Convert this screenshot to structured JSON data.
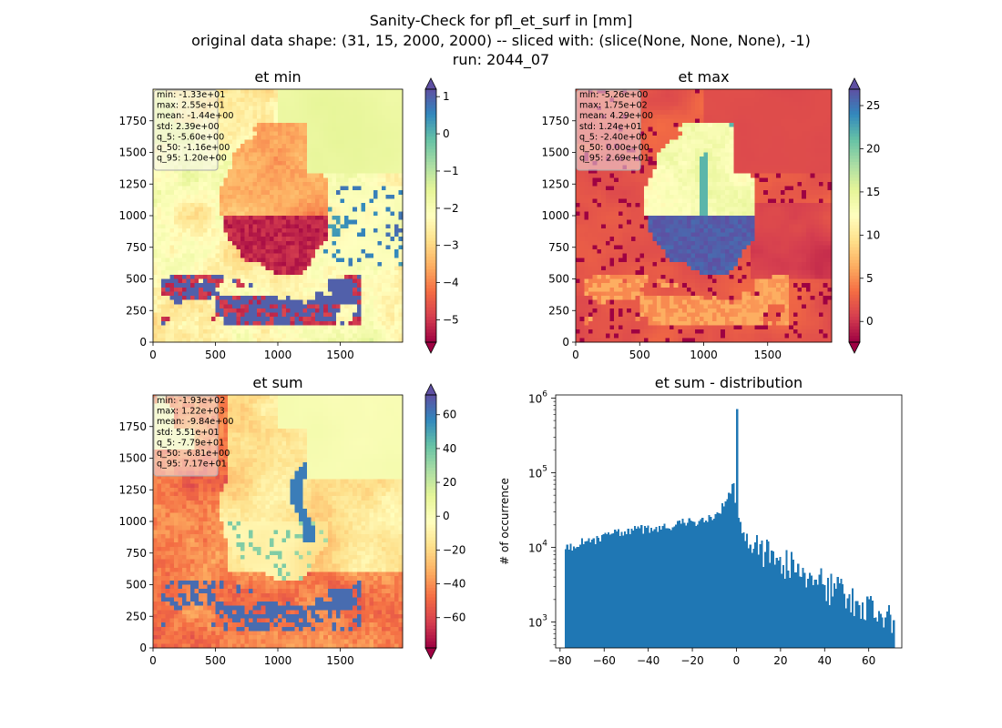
{
  "figure": {
    "suptitle_lines": [
      "Sanity-Check for pfl_et_surf in [mm]",
      "original data shape: (31, 15, 2000, 2000) -- sliced with: (slice(None, None, None), -1)",
      "run: 2044_07"
    ]
  },
  "colors": {
    "spectral": [
      "#9e0142",
      "#d53e4f",
      "#f46d43",
      "#fdae61",
      "#fee08b",
      "#ffffbf",
      "#e6f598",
      "#abdda4",
      "#66c2a5",
      "#3288bd",
      "#5e4fa2"
    ],
    "hist_bar": "#1f77b4"
  },
  "chart_data": [
    {
      "type": "heatmap",
      "title": "et min",
      "x_ticks": [
        "0",
        "500",
        "1000",
        "1500"
      ],
      "y_ticks": [
        "0",
        "250",
        "500",
        "750",
        "1000",
        "1250",
        "1500",
        "1750"
      ],
      "xlim": [
        0,
        2000
      ],
      "ylim": [
        0,
        2000
      ],
      "colorbar": {
        "vmin": -5.6,
        "vmax": 1.2,
        "extend": "both",
        "ticks": [
          "1",
          "0",
          "−1",
          "−2",
          "−3",
          "−4",
          "−5"
        ],
        "tick_values": [
          1,
          0,
          -1,
          -2,
          -3,
          -4,
          -5
        ]
      },
      "stats": [
        "min: -1.33e+01",
        "max: 2.55e+01",
        "mean: -1.44e+00",
        "std: 2.39e+00",
        "q_5: -5.60e+00",
        "q_50: -1.16e+00",
        "q_95: 1.20e+00"
      ]
    },
    {
      "type": "heatmap",
      "title": "et max",
      "x_ticks": [
        "0",
        "500",
        "1000",
        "1500"
      ],
      "y_ticks": [
        "0",
        "250",
        "500",
        "750",
        "1000",
        "1250",
        "1500",
        "1750"
      ],
      "xlim": [
        0,
        2000
      ],
      "ylim": [
        0,
        2000
      ],
      "colorbar": {
        "vmin": -2.4,
        "vmax": 26.9,
        "extend": "both",
        "ticks": [
          "25",
          "20",
          "15",
          "10",
          "5",
          "0"
        ],
        "tick_values": [
          25,
          20,
          15,
          10,
          5,
          0
        ]
      },
      "stats": [
        "min: -5.26e+00",
        "max: 1.75e+02",
        "mean: 4.29e+00",
        "std: 1.24e+01",
        "q_5: -2.40e+00",
        "q_50: 0.00e+00",
        "q_95: 2.69e+01"
      ]
    },
    {
      "type": "heatmap",
      "title": "et sum",
      "x_ticks": [
        "0",
        "500",
        "1000",
        "1500"
      ],
      "y_ticks": [
        "0",
        "250",
        "500",
        "750",
        "1000",
        "1250",
        "1500",
        "1750"
      ],
      "xlim": [
        0,
        2000
      ],
      "ylim": [
        0,
        2000
      ],
      "colorbar": {
        "vmin": -77.9,
        "vmax": 71.7,
        "extend": "both",
        "ticks": [
          "60",
          "40",
          "20",
          "0",
          "−20",
          "−40",
          "−60"
        ],
        "tick_values": [
          60,
          40,
          20,
          0,
          -20,
          -40,
          -60
        ]
      },
      "stats": [
        "min: -1.93e+02",
        "max: 1.22e+03",
        "mean: -9.84e+00",
        "std: 5.51e+01",
        "q_5: -7.79e+01",
        "q_50: -6.81e+00",
        "q_95: 7.17e+01"
      ]
    },
    {
      "type": "bar",
      "title": "et sum - distribution",
      "ylabel": "# of occurrence",
      "y_scale": "log",
      "xlim": [
        -82,
        75
      ],
      "ylim": [
        450,
        1100000
      ],
      "x_ticks": [
        "−80",
        "−60",
        "−40",
        "−20",
        "0",
        "20",
        "40",
        "60"
      ],
      "x_tick_values": [
        -80,
        -60,
        -40,
        -20,
        0,
        20,
        40,
        60
      ],
      "y_tick_labels": [
        {
          "base": "10",
          "exp": "3",
          "value": 1000
        },
        {
          "base": "10",
          "exp": "4",
          "value": 10000
        },
        {
          "base": "10",
          "exp": "5",
          "value": 100000
        },
        {
          "base": "10",
          "exp": "6",
          "value": 1000000
        }
      ],
      "bin_range": [
        -77.9,
        71.7
      ],
      "bin_count": 200,
      "anchors": [
        [
          -77.9,
          9000
        ],
        [
          -70,
          11500
        ],
        [
          -60,
          14000
        ],
        [
          -40,
          18000
        ],
        [
          -20,
          22000
        ],
        [
          -8,
          28000
        ],
        [
          -3,
          50000
        ],
        [
          -1.5,
          75000
        ],
        [
          -0.4,
          40000
        ],
        [
          0,
          800000
        ],
        [
          0.4,
          30000
        ],
        [
          3,
          15000
        ],
        [
          10,
          10000
        ],
        [
          20,
          6500
        ],
        [
          30,
          4500
        ],
        [
          40,
          3000
        ],
        [
          50,
          2200
        ],
        [
          60,
          1600
        ],
        [
          71.7,
          900
        ]
      ]
    }
  ]
}
